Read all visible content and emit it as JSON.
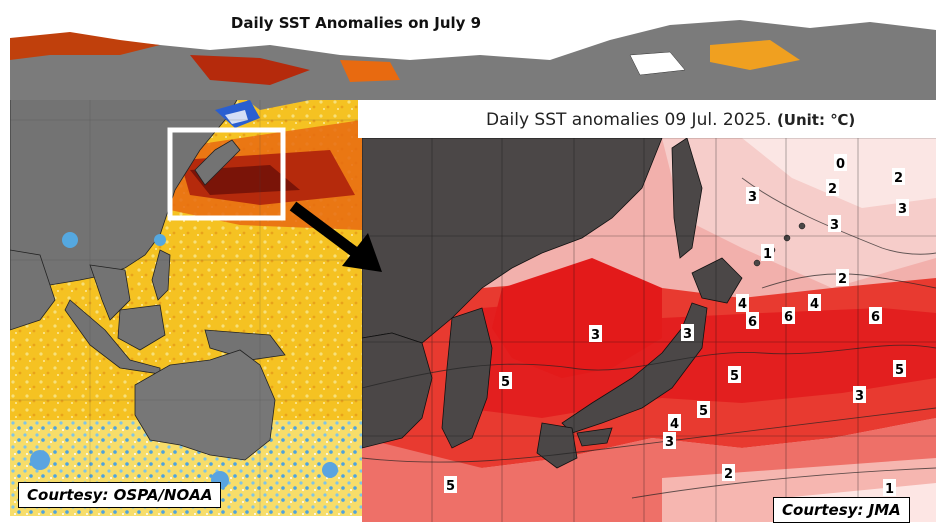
{
  "left_map": {
    "title": "Daily SST Anomalies on July 9",
    "courtesy": "Courtesy: OSPA/NOAA"
  },
  "right_map": {
    "title_main": "Daily SST anomalies 09 Jul. 2025.",
    "title_unit": "(Unit: ℃)",
    "courtesy": "Courtesy: JMA",
    "contour_labels": [
      "0",
      "2",
      "2",
      "3",
      "3",
      "3",
      "3",
      "1",
      "2",
      "4",
      "3",
      "4",
      "6",
      "3",
      "6",
      "6",
      "5",
      "5",
      "5",
      "5",
      "3",
      "4",
      "3",
      "2",
      "5",
      "1"
    ]
  },
  "colors": {
    "land": "#707070",
    "jma_land": "#4a4646",
    "warm_anomaly": "#e02222",
    "hot_anomaly": "#8a1f0e",
    "cool_anomaly": "#2a6fd6",
    "neutral_anomaly": "#f2d23a",
    "highlight_box": "#ffffff",
    "arrow": "#000000"
  }
}
